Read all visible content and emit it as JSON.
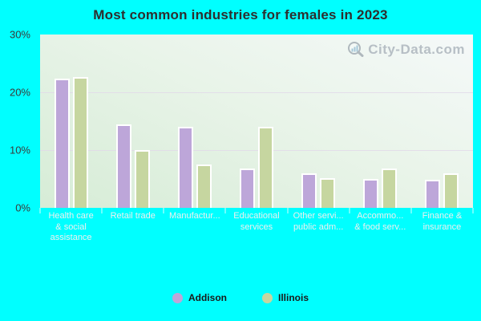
{
  "title": "Most common industries for females in 2023",
  "watermark": {
    "text": "City-Data.com"
  },
  "colors": {
    "background": "#00ffff",
    "addison_bar": "#bda6d9",
    "illinois_bar": "#c6d6a0",
    "plot_gradient_top": "#f5f9f9",
    "plot_gradient_bottom": "#d6ecd6",
    "grid_line": "#e1d8e8",
    "x_label_text": "#eef0f0",
    "y_label_text": "#3a3a3a",
    "title_text": "#2e2e2e",
    "watermark_text": "#a9b2ba"
  },
  "y_axis": {
    "ticks": [
      "30%",
      "20%",
      "10%",
      "0%"
    ],
    "max_percent": 30
  },
  "chart_data": {
    "type": "bar",
    "title": "Most common industries for females in 2023",
    "xlabel": "",
    "ylabel": "",
    "ylim": [
      0,
      30
    ],
    "grid": "horizontal",
    "legend_position": "bottom",
    "categories": [
      "Health care & social assistance",
      "Retail trade",
      "Manufactur...",
      "Educational services",
      "Other servi... public adm...",
      "Accommo... & food serv...",
      "Finance & insurance"
    ],
    "category_lines": [
      [
        "Health care",
        "& social",
        "assistance"
      ],
      [
        "Retail trade"
      ],
      [
        "Manufactur..."
      ],
      [
        "Educational",
        "services"
      ],
      [
        "Other servi...",
        "public adm..."
      ],
      [
        "Accommo...",
        "& food serv..."
      ],
      [
        "Finance &",
        "insurance"
      ]
    ],
    "series": [
      {
        "name": "Addison",
        "color": "#bda6d9",
        "values": [
          22.3,
          14.5,
          14.0,
          6.8,
          6.0,
          5.0,
          4.9
        ]
      },
      {
        "name": "Illinois",
        "color": "#c6d6a0",
        "values": [
          22.6,
          10.0,
          7.5,
          14.0,
          5.1,
          6.8,
          6.0
        ]
      }
    ]
  }
}
